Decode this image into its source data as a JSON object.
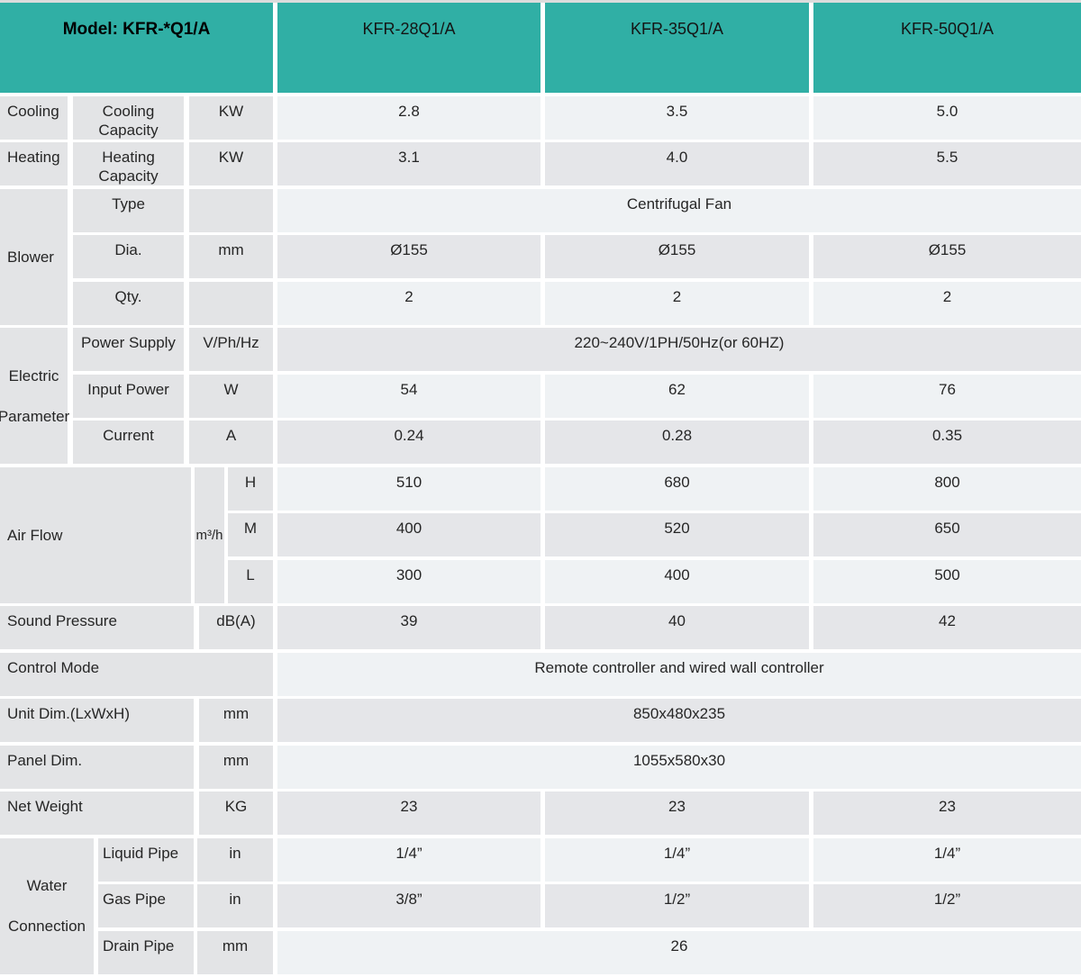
{
  "title": "Model: KFR-*Q1/A",
  "colors": {
    "header_teal": "#30afa5",
    "label_cell_bg": "#e3e4e6",
    "row_light_bg": "#eff2f4",
    "row_gray_bg": "#e5e6e9",
    "gap_color": "#ffffff",
    "text": "#262626"
  },
  "header": {
    "model_label": "Model: KFR-*Q1/A",
    "columns": [
      "KFR-28Q1/A",
      "KFR-35Q1/A",
      "KFR-50Q1/A"
    ]
  },
  "table": {
    "cooling": {
      "group": "Cooling",
      "sub": "Cooling Capacity",
      "unit": "KW",
      "values": [
        "2.8",
        "3.5",
        "5.0"
      ]
    },
    "heating": {
      "group": "Heating",
      "sub": "Heating Capacity",
      "unit": "KW",
      "values": [
        "3.1",
        "4.0",
        "5.5"
      ]
    },
    "blower": {
      "group": "Blower",
      "type": {
        "sub": "Type",
        "span_value": "Centrifugal Fan"
      },
      "dia": {
        "sub": "Dia.",
        "unit": "mm",
        "values": [
          "Ø155",
          "Ø155",
          "Ø155"
        ]
      },
      "qty": {
        "sub": "Qty.",
        "values": [
          "2",
          "2",
          "2"
        ]
      }
    },
    "electric": {
      "group": "Electric Parameter",
      "power_supply": {
        "sub": "Power Supply",
        "unit": "V/Ph/Hz",
        "span_value": "220~240V/1PH/50Hz(or 60HZ)"
      },
      "input_power": {
        "sub": "Input Power",
        "unit": "W",
        "values": [
          "54",
          "62",
          "76"
        ]
      },
      "current": {
        "sub": "Current",
        "unit": "A",
        "values": [
          "0.24",
          "0.28",
          "0.35"
        ]
      }
    },
    "air_flow": {
      "group": "Air Flow",
      "unit": "m³/h",
      "high": {
        "sub": "H",
        "values": [
          "510",
          "680",
          "800"
        ]
      },
      "medium": {
        "sub": "M",
        "values": [
          "400",
          "520",
          "650"
        ]
      },
      "low": {
        "sub": "L",
        "values": [
          "300",
          "400",
          "500"
        ]
      }
    },
    "sound_pressure": {
      "label": "Sound Pressure",
      "unit": "dB(A)",
      "values": [
        "39",
        "40",
        "42"
      ]
    },
    "control_mode": {
      "label": "Control Mode",
      "span_value": "Remote controller and wired wall controller"
    },
    "unit_dim": {
      "label": "Unit Dim.(LxWxH)",
      "unit": "mm",
      "span_value": "850x480x235"
    },
    "panel_dim": {
      "label": "Panel Dim.",
      "unit": "mm",
      "span_value": "1055x580x30"
    },
    "net_weight": {
      "label": "Net Weight",
      "unit": "KG",
      "values": [
        "23",
        "23",
        "23"
      ]
    },
    "water": {
      "group": "Water Connection",
      "liquid": {
        "sub": "Liquid Pipe",
        "unit": "in",
        "values": [
          "1/4”",
          "1/4”",
          "1/4”"
        ]
      },
      "gas": {
        "sub": "Gas Pipe",
        "unit": "in",
        "values": [
          "3/8”",
          "1/2”",
          "1/2”"
        ]
      },
      "drain": {
        "sub": "Drain Pipe",
        "unit": "mm",
        "span_value": "26"
      }
    }
  }
}
